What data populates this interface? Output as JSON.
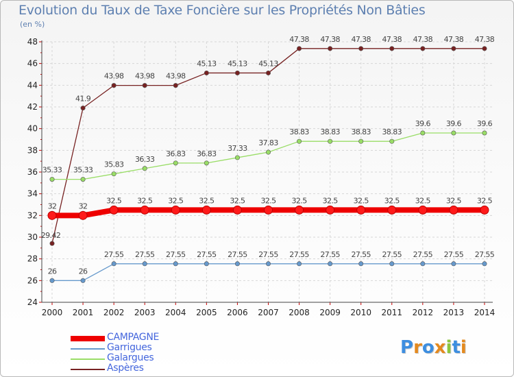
{
  "chart_data": {
    "type": "line",
    "title": "Evolution du Taux de Taxe Foncière sur les Propriétés Non Bâties",
    "ylabel": "(en %)",
    "ylim": [
      24,
      48
    ],
    "yticks": [
      24,
      26,
      28,
      30,
      32,
      34,
      36,
      38,
      40,
      42,
      44,
      46,
      48
    ],
    "x": [
      2000,
      2001,
      2002,
      2003,
      2004,
      2005,
      2006,
      2007,
      2008,
      2009,
      2010,
      2011,
      2012,
      2013,
      2014
    ],
    "grid": true,
    "series": [
      {
        "name": "CAMPAGNE",
        "color": "#ee0000",
        "values": [
          32,
          32,
          32.5,
          32.5,
          32.5,
          32.5,
          32.5,
          32.5,
          32.5,
          32.5,
          32.5,
          32.5,
          32.5,
          32.5,
          32.5
        ],
        "labels": [
          "32",
          "32",
          "32.5",
          "32.5",
          "32.5",
          "32.5",
          "32.5",
          "32.5",
          "32.5",
          "32.5",
          "32.5",
          "32.5",
          "32.5",
          "32.5",
          "32.5"
        ]
      },
      {
        "name": "Garrigues",
        "color": "#6699cc",
        "values": [
          26,
          26,
          27.55,
          27.55,
          27.55,
          27.55,
          27.55,
          27.55,
          27.55,
          27.55,
          27.55,
          27.55,
          27.55,
          27.55,
          27.55
        ],
        "labels": [
          "26",
          "26",
          "27.55",
          "27.55",
          "27.55",
          "27.55",
          "27.55",
          "27.55",
          "27.55",
          "27.55",
          "27.55",
          "27.55",
          "27.55",
          "27.55",
          "27.55"
        ]
      },
      {
        "name": "Galargues",
        "color": "#99dd66",
        "values": [
          35.33,
          35.33,
          35.83,
          36.33,
          36.83,
          36.83,
          37.33,
          37.83,
          38.83,
          38.83,
          38.83,
          38.83,
          39.6,
          39.6,
          39.6
        ],
        "labels": [
          "35.33",
          "35.33",
          "35.83",
          "36.33",
          "36.83",
          "36.83",
          "37.33",
          "37.83",
          "38.83",
          "38.83",
          "38.83",
          "38.83",
          "39.6",
          "39.6",
          "39.6"
        ]
      },
      {
        "name": "Aspères",
        "color": "#772222",
        "values": [
          29.42,
          41.9,
          43.98,
          43.98,
          43.98,
          45.13,
          45.13,
          45.13,
          47.38,
          47.38,
          47.38,
          47.38,
          47.38,
          47.38,
          47.38
        ],
        "labels": [
          "29.42",
          "41.9",
          "43.98",
          "43.98",
          "43.98",
          "45.13",
          "45.13",
          "45.13",
          "47.38",
          "47.38",
          "47.38",
          "47.38",
          "47.38",
          "47.38",
          "47.38"
        ]
      }
    ]
  },
  "logo": {
    "letters": [
      "P",
      "r",
      "o",
      "x",
      "i",
      "t",
      "i"
    ],
    "colors": [
      "#3d8ee0",
      "#e48a1f",
      "#3d8ee0",
      "#e48a1f",
      "#8cc63f",
      "#3d8ee0",
      "#e48a1f"
    ]
  }
}
